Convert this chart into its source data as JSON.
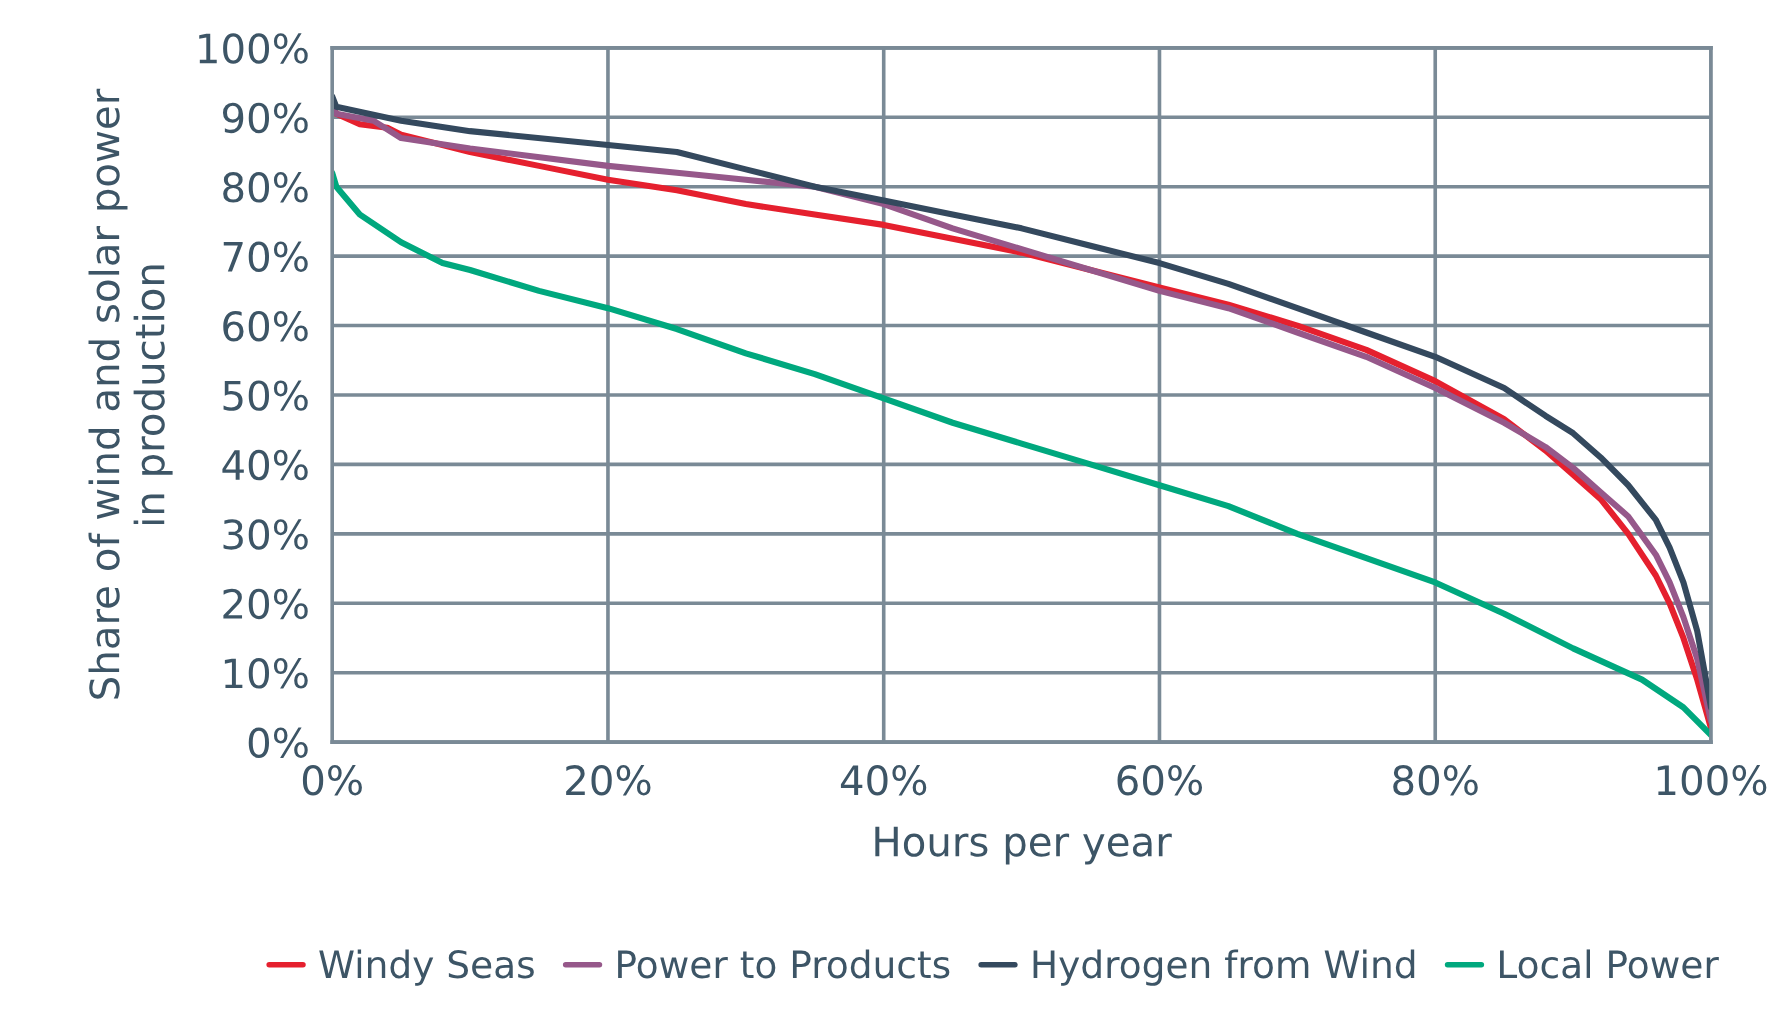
{
  "chart_data": {
    "type": "line",
    "xlabel": "Hours per year",
    "ylabel": "Share of wind and solar power\nin production",
    "xlim": [
      0,
      100
    ],
    "ylim": [
      0,
      100
    ],
    "xticks": [
      {
        "value": 0,
        "label": "0%"
      },
      {
        "value": 20,
        "label": "20%"
      },
      {
        "value": 40,
        "label": "40%"
      },
      {
        "value": 60,
        "label": "60%"
      },
      {
        "value": 80,
        "label": "80%"
      },
      {
        "value": 100,
        "label": "100%"
      }
    ],
    "yticks": [
      {
        "value": 0,
        "label": "0%"
      },
      {
        "value": 10,
        "label": "10%"
      },
      {
        "value": 20,
        "label": "20%"
      },
      {
        "value": 30,
        "label": "30%"
      },
      {
        "value": 40,
        "label": "40%"
      },
      {
        "value": 50,
        "label": "50%"
      },
      {
        "value": 60,
        "label": "60%"
      },
      {
        "value": 70,
        "label": "70%"
      },
      {
        "value": 80,
        "label": "80%"
      },
      {
        "value": 90,
        "label": "90%"
      },
      {
        "value": 100,
        "label": "100%"
      }
    ],
    "grid": true,
    "legend": "bottom",
    "marker": "none",
    "line_style": "solid",
    "series": [
      {
        "name": "Windy Seas",
        "color": "#e5202e",
        "x": [
          0,
          0.3,
          2,
          4,
          5,
          10,
          15,
          20,
          25,
          30,
          35,
          40,
          45,
          50,
          55,
          60,
          65,
          70,
          75,
          80,
          85,
          88,
          90,
          92,
          94,
          96,
          97,
          98,
          99,
          100
        ],
        "values": [
          92,
          90.5,
          89,
          88.5,
          87.5,
          85,
          83,
          81,
          79.5,
          77.5,
          76,
          74.5,
          72.5,
          70.5,
          68,
          65.5,
          63,
          60,
          56.5,
          52,
          46.5,
          42,
          38.5,
          35,
          30,
          24,
          20,
          15,
          9,
          2
        ]
      },
      {
        "name": "Power to Products",
        "color": "#96588a",
        "x": [
          0,
          0.3,
          3,
          5,
          10,
          20,
          25,
          30,
          35,
          40,
          45,
          50,
          55,
          60,
          65,
          70,
          75,
          80,
          85,
          88,
          90,
          92,
          94,
          96,
          97,
          98,
          99,
          100
        ],
        "values": [
          91.5,
          90.5,
          89.5,
          87,
          85.5,
          83,
          82,
          81,
          80,
          77.5,
          74,
          71,
          68,
          65,
          62.5,
          59,
          55.5,
          51,
          46,
          42.5,
          39.5,
          36,
          32.5,
          27,
          23,
          18,
          12,
          3
        ]
      },
      {
        "name": "Hydrogen from Wind",
        "color": "#34495e",
        "x": [
          0,
          0.3,
          5,
          10,
          20,
          25,
          30,
          35,
          40,
          45,
          50,
          55,
          60,
          65,
          70,
          75,
          80,
          85,
          88,
          90,
          92,
          94,
          96,
          97,
          98,
          99,
          100
        ],
        "values": [
          93,
          91.5,
          89.5,
          88,
          86,
          85,
          82.5,
          80,
          78,
          76,
          74,
          71.5,
          69,
          66,
          62.5,
          59,
          55.5,
          51,
          47,
          44.5,
          41,
          37,
          32,
          28,
          23,
          16,
          5
        ]
      },
      {
        "name": "Local Power",
        "color": "#00a87e",
        "x": [
          0,
          0.3,
          2,
          5,
          8,
          10,
          15,
          20,
          25,
          30,
          35,
          40,
          45,
          50,
          55,
          60,
          65,
          70,
          75,
          80,
          85,
          90,
          95,
          98,
          100
        ],
        "values": [
          82,
          80,
          76,
          72,
          69,
          68,
          65,
          62.5,
          59.5,
          56,
          53,
          49.5,
          46,
          43,
          40,
          37,
          34,
          30,
          26.5,
          23,
          18.5,
          13.5,
          9,
          5,
          1
        ]
      }
    ]
  }
}
